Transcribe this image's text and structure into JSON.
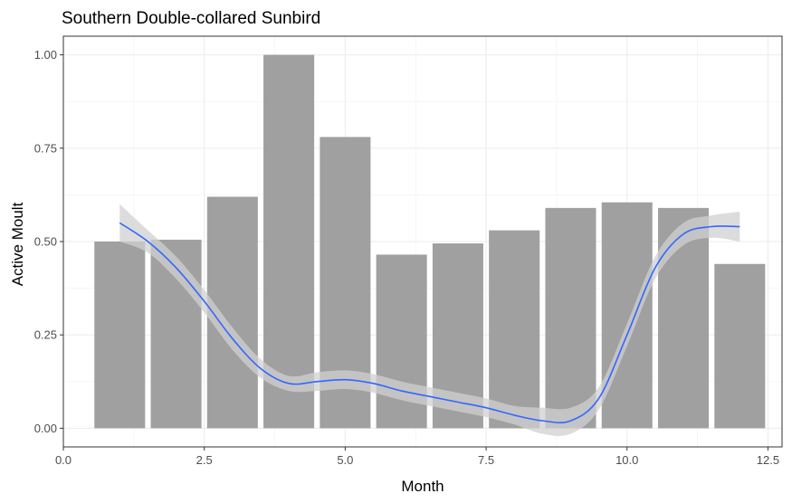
{
  "chart_data": {
    "type": "bar",
    "title": "Southern Double-collared Sunbird",
    "xlabel": "Month",
    "ylabel": "Active Moult",
    "xlim": [
      0,
      12.75
    ],
    "ylim": [
      -0.05,
      1.05
    ],
    "x_ticks": [
      0,
      2.5,
      5,
      7.5,
      10,
      12.5
    ],
    "x_tick_labels": [
      "0.0",
      "2.5",
      "5.0",
      "7.5",
      "10.0",
      "12.5"
    ],
    "y_ticks": [
      0,
      0.25,
      0.5,
      0.75,
      1
    ],
    "y_tick_labels": [
      "0.00",
      "0.25",
      "0.50",
      "0.75",
      "1.00"
    ],
    "grid": true,
    "bar_color": "#a0a0a0",
    "bars": {
      "x": [
        1,
        2,
        3,
        4,
        5,
        6,
        7,
        8,
        9,
        10,
        11,
        12
      ],
      "values": [
        0.5,
        0.505,
        0.62,
        1.0,
        0.78,
        0.465,
        0.495,
        0.53,
        0.59,
        0.605,
        0.59,
        0.44
      ],
      "width": 0.9
    },
    "smooth": {
      "color": "#3366ff",
      "band_color": "#d0d0d0",
      "x": [
        1,
        1.5,
        2,
        2.5,
        3,
        3.5,
        4,
        4.5,
        5,
        5.5,
        6,
        6.5,
        7,
        7.5,
        8,
        8.5,
        9,
        9.5,
        10,
        10.5,
        11,
        11.5,
        12
      ],
      "y": [
        0.55,
        0.5,
        0.43,
        0.34,
        0.24,
        0.16,
        0.12,
        0.125,
        0.13,
        0.12,
        0.1,
        0.085,
        0.07,
        0.055,
        0.035,
        0.02,
        0.02,
        0.08,
        0.25,
        0.43,
        0.52,
        0.54,
        0.54
      ],
      "lower": [
        0.5,
        0.47,
        0.4,
        0.31,
        0.21,
        0.135,
        0.1,
        0.1,
        0.105,
        0.095,
        0.075,
        0.06,
        0.045,
        0.03,
        0.01,
        -0.015,
        -0.015,
        0.05,
        0.22,
        0.4,
        0.49,
        0.51,
        0.5
      ],
      "upper": [
        0.6,
        0.53,
        0.46,
        0.37,
        0.27,
        0.185,
        0.14,
        0.15,
        0.155,
        0.145,
        0.125,
        0.11,
        0.095,
        0.08,
        0.06,
        0.055,
        0.055,
        0.11,
        0.28,
        0.46,
        0.55,
        0.57,
        0.58
      ]
    }
  }
}
